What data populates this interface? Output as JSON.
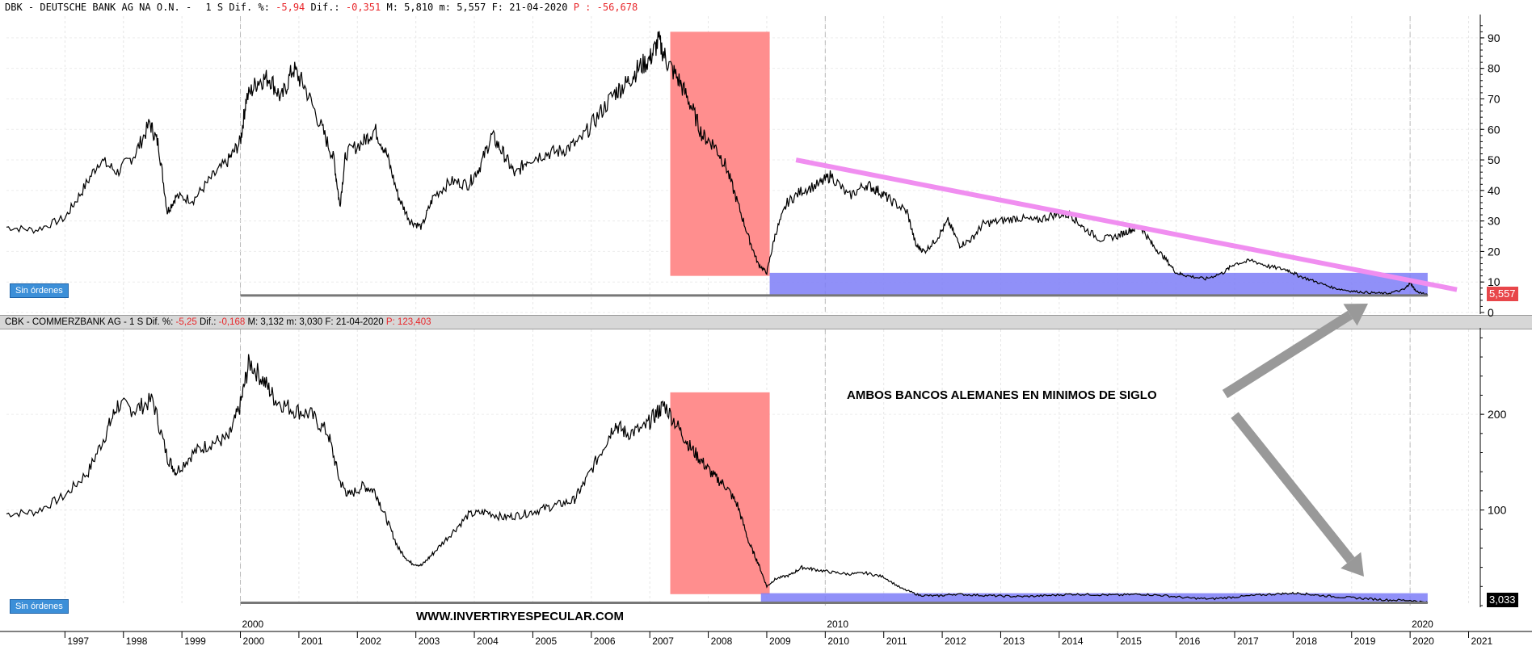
{
  "top_panel": {
    "header": {
      "ticker": "DBK - DEUTSCHE BANK AG NA O.N. -",
      "period": "1 S",
      "dif_pct_label": "Dif. %:",
      "dif_pct_value": "-5,94",
      "dif_label": "Dif.:",
      "dif_value": "-0,351",
      "max_label": "M:",
      "max_value": "5,810",
      "min_label": "m:",
      "min_value": "5,557",
      "date_label": "F:",
      "date_value": "21-04-2020",
      "p_label": "P :",
      "p_value": "-56,678"
    },
    "badge": "Sin órdenes",
    "last_price": "5,557",
    "accent_color": "#e8464a"
  },
  "bottom_panel": {
    "header": {
      "ticker": "CBK - COMMERZBANK AG -",
      "period": "1 S",
      "dif_pct_label": "Dif. %:",
      "dif_pct_value": "-5,25",
      "dif_label": "Dif.:",
      "dif_value": "-0,168",
      "max_label": "M:",
      "max_value": "3,132",
      "min_label": "m:",
      "min_value": "3,030",
      "date_label": "F:",
      "date_value": "21-04-2020",
      "p_label": "P:",
      "p_value": "123,403"
    },
    "badge": "Sin órdenes",
    "last_price": "3,033",
    "accent_color": "#000000"
  },
  "annotation_text": "AMBOS BANCOS ALEMANES EN MINIMOS DE SIGLO",
  "watermark": "WWW.INVERTIRYESPECULAR.COM",
  "colors": {
    "crash_zone": "#ff8e8e",
    "support_zone": "#7d7cf7",
    "trendline": "#f08ef0",
    "arrow": "#999999",
    "price_line": "#000000"
  },
  "chart_data": [
    {
      "type": "line",
      "series": [
        {
          "values": [
            [
              1996.0,
              28
            ],
            [
              1996.5,
              27
            ],
            [
              1997.0,
              31
            ],
            [
              1997.3,
              40
            ],
            [
              1997.6,
              50
            ],
            [
              1997.9,
              46
            ],
            [
              1998.2,
              52
            ],
            [
              1998.45,
              62
            ],
            [
              1998.6,
              55
            ],
            [
              1998.75,
              33
            ],
            [
              1998.9,
              38
            ],
            [
              1999.2,
              37
            ],
            [
              1999.5,
              44
            ],
            [
              1999.8,
              50
            ],
            [
              2000.0,
              56
            ],
            [
              2000.1,
              70
            ],
            [
              2000.3,
              76
            ],
            [
              2000.5,
              77
            ],
            [
              2000.7,
              70
            ],
            [
              2000.9,
              80
            ],
            [
              2001.1,
              74
            ],
            [
              2001.4,
              60
            ],
            [
              2001.6,
              50
            ],
            [
              2001.7,
              35
            ],
            [
              2001.8,
              52
            ],
            [
              2002.1,
              56
            ],
            [
              2002.3,
              60
            ],
            [
              2002.5,
              52
            ],
            [
              2002.7,
              38
            ],
            [
              2002.9,
              30
            ],
            [
              2003.1,
              28
            ],
            [
              2003.3,
              38
            ],
            [
              2003.6,
              43
            ],
            [
              2003.9,
              42
            ],
            [
              2004.1,
              48
            ],
            [
              2004.3,
              58
            ],
            [
              2004.5,
              52
            ],
            [
              2004.7,
              45
            ],
            [
              2004.9,
              50
            ],
            [
              2005.2,
              52
            ],
            [
              2005.5,
              53
            ],
            [
              2005.8,
              56
            ],
            [
              2006.1,
              64
            ],
            [
              2006.4,
              72
            ],
            [
              2006.6,
              75
            ],
            [
              2006.8,
              80
            ],
            [
              2007.0,
              83
            ],
            [
              2007.15,
              89
            ],
            [
              2007.3,
              82
            ],
            [
              2007.5,
              76
            ],
            [
              2007.7,
              68
            ],
            [
              2007.9,
              58
            ],
            [
              2008.1,
              55
            ],
            [
              2008.3,
              48
            ],
            [
              2008.5,
              36
            ],
            [
              2008.7,
              24
            ],
            [
              2008.85,
              16
            ],
            [
              2009.0,
              13
            ],
            [
              2009.15,
              26
            ],
            [
              2009.35,
              36
            ],
            [
              2009.6,
              40
            ],
            [
              2009.9,
              42
            ],
            [
              2010.1,
              45
            ],
            [
              2010.4,
              38
            ],
            [
              2010.7,
              42
            ],
            [
              2010.9,
              40
            ],
            [
              2011.1,
              37
            ],
            [
              2011.4,
              33
            ],
            [
              2011.55,
              22
            ],
            [
              2011.7,
              20
            ],
            [
              2011.9,
              24
            ],
            [
              2012.1,
              30
            ],
            [
              2012.3,
              22
            ],
            [
              2012.5,
              24
            ],
            [
              2012.7,
              29
            ],
            [
              2013.0,
              30
            ],
            [
              2013.3,
              31
            ],
            [
              2013.6,
              30
            ],
            [
              2013.9,
              32
            ],
            [
              2014.2,
              32
            ],
            [
              2014.4,
              28
            ],
            [
              2014.7,
              24
            ],
            [
              2015.0,
              25
            ],
            [
              2015.2,
              27
            ],
            [
              2015.4,
              28
            ],
            [
              2015.6,
              22
            ],
            [
              2015.8,
              18
            ],
            [
              2016.0,
              13
            ],
            [
              2016.2,
              12
            ],
            [
              2016.5,
              11
            ],
            [
              2016.8,
              13
            ],
            [
              2017.0,
              16
            ],
            [
              2017.3,
              17
            ],
            [
              2017.6,
              15
            ],
            [
              2017.9,
              14
            ],
            [
              2018.1,
              12
            ],
            [
              2018.4,
              10
            ],
            [
              2018.7,
              8
            ],
            [
              2019.0,
              7
            ],
            [
              2019.3,
              6.5
            ],
            [
              2019.6,
              6.2
            ],
            [
              2019.9,
              7.5
            ],
            [
              2020.0,
              9.8
            ],
            [
              2020.1,
              7
            ],
            [
              2020.3,
              5.6
            ]
          ]
        }
      ],
      "xlim": [
        1996.0,
        2021.2
      ],
      "ylim": [
        0,
        95
      ],
      "yticks": [
        "90",
        "80",
        "70",
        "60",
        "50",
        "40",
        "30",
        "20",
        "10",
        "0"
      ],
      "ytick_values": [
        90,
        80,
        70,
        60,
        50,
        40,
        30,
        20,
        10,
        0
      ],
      "last_value": 5.557,
      "annotations": {
        "crash_zone": {
          "x": [
            2007.35,
            2009.05
          ],
          "y": [
            12,
            92
          ]
        },
        "support_zone": {
          "x": [
            2009.05,
            2020.3
          ],
          "y": [
            5.6,
            13
          ]
        },
        "trendline": {
          "from": [
            2009.5,
            50
          ],
          "to": [
            2020.8,
            7.5
          ]
        },
        "floor_line": {
          "x": [
            2000.0,
            2020.3
          ],
          "y": 5.6
        }
      }
    },
    {
      "type": "line",
      "series": [
        {
          "values": [
            [
              1996.0,
              96
            ],
            [
              1996.5,
              98
            ],
            [
              1997.0,
              115
            ],
            [
              1997.4,
              140
            ],
            [
              1997.7,
              180
            ],
            [
              1997.9,
              210
            ],
            [
              1998.2,
              205
            ],
            [
              1998.5,
              215
            ],
            [
              1998.75,
              155
            ],
            [
              1998.9,
              140
            ],
            [
              1999.2,
              160
            ],
            [
              1999.5,
              170
            ],
            [
              1999.8,
              175
            ],
            [
              2000.0,
              210
            ],
            [
              2000.15,
              255
            ],
            [
              2000.4,
              235
            ],
            [
              2000.6,
              215
            ],
            [
              2000.9,
              205
            ],
            [
              2001.2,
              200
            ],
            [
              2001.5,
              180
            ],
            [
              2001.7,
              130
            ],
            [
              2001.85,
              115
            ],
            [
              2002.1,
              125
            ],
            [
              2002.3,
              120
            ],
            [
              2002.5,
              90
            ],
            [
              2002.7,
              60
            ],
            [
              2002.9,
              45
            ],
            [
              2003.1,
              42
            ],
            [
              2003.3,
              55
            ],
            [
              2003.6,
              75
            ],
            [
              2003.9,
              95
            ],
            [
              2004.2,
              98
            ],
            [
              2004.5,
              92
            ],
            [
              2004.8,
              95
            ],
            [
              2005.1,
              100
            ],
            [
              2005.4,
              105
            ],
            [
              2005.7,
              110
            ],
            [
              2005.9,
              130
            ],
            [
              2006.2,
              165
            ],
            [
              2006.4,
              190
            ],
            [
              2006.6,
              180
            ],
            [
              2006.9,
              185
            ],
            [
              2007.1,
              200
            ],
            [
              2007.25,
              210
            ],
            [
              2007.5,
              185
            ],
            [
              2007.7,
              165
            ],
            [
              2007.9,
              150
            ],
            [
              2008.1,
              135
            ],
            [
              2008.3,
              125
            ],
            [
              2008.5,
              105
            ],
            [
              2008.7,
              65
            ],
            [
              2008.85,
              45
            ],
            [
              2009.0,
              20
            ],
            [
              2009.15,
              28
            ],
            [
              2009.4,
              32
            ],
            [
              2009.6,
              40
            ],
            [
              2009.8,
              38
            ],
            [
              2010.1,
              35
            ],
            [
              2010.4,
              33
            ],
            [
              2010.7,
              34
            ],
            [
              2011.0,
              30
            ],
            [
              2011.3,
              18
            ],
            [
              2011.6,
              11
            ],
            [
              2011.9,
              10
            ],
            [
              2012.2,
              12
            ],
            [
              2012.6,
              11
            ],
            [
              2013.0,
              10
            ],
            [
              2013.4,
              9.5
            ],
            [
              2013.8,
              10.5
            ],
            [
              2014.2,
              12
            ],
            [
              2014.6,
              11.5
            ],
            [
              2015.0,
              11
            ],
            [
              2015.4,
              12
            ],
            [
              2015.8,
              10.5
            ],
            [
              2016.2,
              8
            ],
            [
              2016.6,
              7
            ],
            [
              2017.0,
              9
            ],
            [
              2017.4,
              11
            ],
            [
              2017.8,
              12.5
            ],
            [
              2018.1,
              13
            ],
            [
              2018.4,
              11
            ],
            [
              2018.8,
              9
            ],
            [
              2019.2,
              7.5
            ],
            [
              2019.6,
              6
            ],
            [
              2020.0,
              5.5
            ],
            [
              2020.3,
              3.03
            ]
          ]
        }
      ],
      "xlim": [
        1996.0,
        2021.2
      ],
      "ylim": [
        0,
        282
      ],
      "yticks": [
        "200",
        "100"
      ],
      "ytick_values": [
        200,
        100
      ],
      "last_value": 3.033,
      "annotations": {
        "crash_zone": {
          "x": [
            2007.35,
            2009.05
          ],
          "y": [
            12,
            223
          ]
        },
        "support_zone": {
          "x": [
            2008.9,
            2020.3
          ],
          "y": [
            3,
            13
          ]
        },
        "floor_line": {
          "x": [
            2000.0,
            2020.3
          ],
          "y": 3
        }
      }
    }
  ],
  "x_axis": {
    "ticks": [
      "1997",
      "1998",
      "1999",
      "2000",
      "2001",
      "2002",
      "2003",
      "2004",
      "2005",
      "2006",
      "2007",
      "2008",
      "2009",
      "2010",
      "2011",
      "2012",
      "2013",
      "2014",
      "2015",
      "2016",
      "2017",
      "2018",
      "2019",
      "2020",
      "2021"
    ],
    "tick_values": [
      1997,
      1998,
      1999,
      2000,
      2001,
      2002,
      2003,
      2004,
      2005,
      2006,
      2007,
      2008,
      2009,
      2010,
      2011,
      2012,
      2013,
      2014,
      2015,
      2016,
      2017,
      2018,
      2019,
      2020,
      2021
    ],
    "major_labels": [
      "2000",
      "2010",
      "2020"
    ],
    "major_values": [
      2000,
      2010,
      2020
    ]
  }
}
